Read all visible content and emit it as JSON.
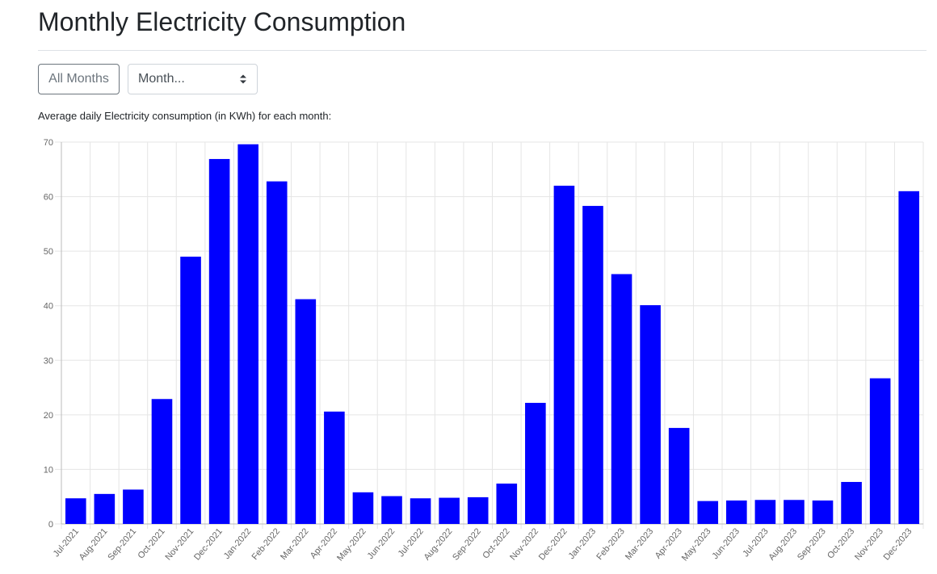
{
  "page": {
    "title": "Monthly Electricity Consumption",
    "subtitle": "Average daily Electricity consumption (in KWh) for each month:"
  },
  "controls": {
    "all_months_label": "All Months",
    "month_select_value": "Month..."
  },
  "colors": {
    "bar": "#0000ff",
    "grid": "#e5e5e5",
    "axis_text": "#666666"
  },
  "chart_data": {
    "type": "bar",
    "categories": [
      "Jul-2021",
      "Aug-2021",
      "Sep-2021",
      "Oct-2021",
      "Nov-2021",
      "Dec-2021",
      "Jan-2022",
      "Feb-2022",
      "Mar-2022",
      "Apr-2022",
      "May-2022",
      "Jun-2022",
      "Jul-2022",
      "Aug-2022",
      "Sep-2022",
      "Oct-2022",
      "Nov-2022",
      "Dec-2022",
      "Jan-2023",
      "Feb-2023",
      "Mar-2023",
      "Apr-2023",
      "May-2023",
      "Jun-2023",
      "Jul-2023",
      "Aug-2023",
      "Sep-2023",
      "Oct-2023",
      "Nov-2023",
      "Dec-2023"
    ],
    "values": [
      4.7,
      5.5,
      6.3,
      22.9,
      49.0,
      66.9,
      69.6,
      62.8,
      41.2,
      20.6,
      5.8,
      5.1,
      4.7,
      4.8,
      4.9,
      7.4,
      22.2,
      62.0,
      58.3,
      45.8,
      40.1,
      17.6,
      4.2,
      4.3,
      4.4,
      4.4,
      4.3,
      7.7,
      26.7,
      61.0
    ],
    "yticks": [
      0,
      10,
      20,
      30,
      40,
      50,
      60,
      70
    ],
    "ylim": [
      0,
      70
    ],
    "grid": true,
    "legend": "none"
  }
}
